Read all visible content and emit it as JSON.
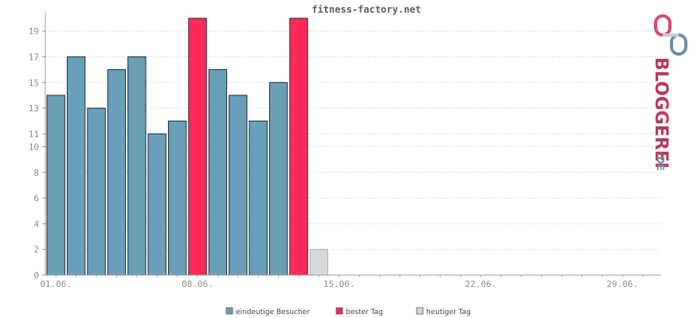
{
  "chart_data": {
    "type": "bar",
    "title": "fitness-factory.net",
    "ylim": [
      0,
      20
    ],
    "y_ticks": [
      0,
      2,
      4,
      6,
      8,
      10,
      11,
      13,
      15,
      17,
      19
    ],
    "x_ticks": [
      "01.06.",
      "08.06.",
      "15.06.",
      "22.06.",
      "29.06."
    ],
    "days": 30,
    "grid": true,
    "legend_position": "bottom",
    "values": [
      14,
      17,
      13,
      16,
      17,
      11,
      12,
      20,
      16,
      14,
      12,
      15,
      20,
      2
    ],
    "kinds": [
      "normal",
      "normal",
      "normal",
      "normal",
      "normal",
      "normal",
      "normal",
      "best",
      "normal",
      "normal",
      "normal",
      "normal",
      "best",
      "today"
    ],
    "legend": [
      {
        "label": "eindeutige Besucher",
        "kind": "normal"
      },
      {
        "label": "bester Tag",
        "kind": "best"
      },
      {
        "label": "heutiger Tag",
        "kind": "today"
      }
    ],
    "colors": {
      "normal": "#6a9fba",
      "best": "#ff2a5a",
      "today": "#d9d9d9"
    }
  },
  "logo": {
    "brand": "BLOGGEREI",
    "suffix": ".DE"
  }
}
